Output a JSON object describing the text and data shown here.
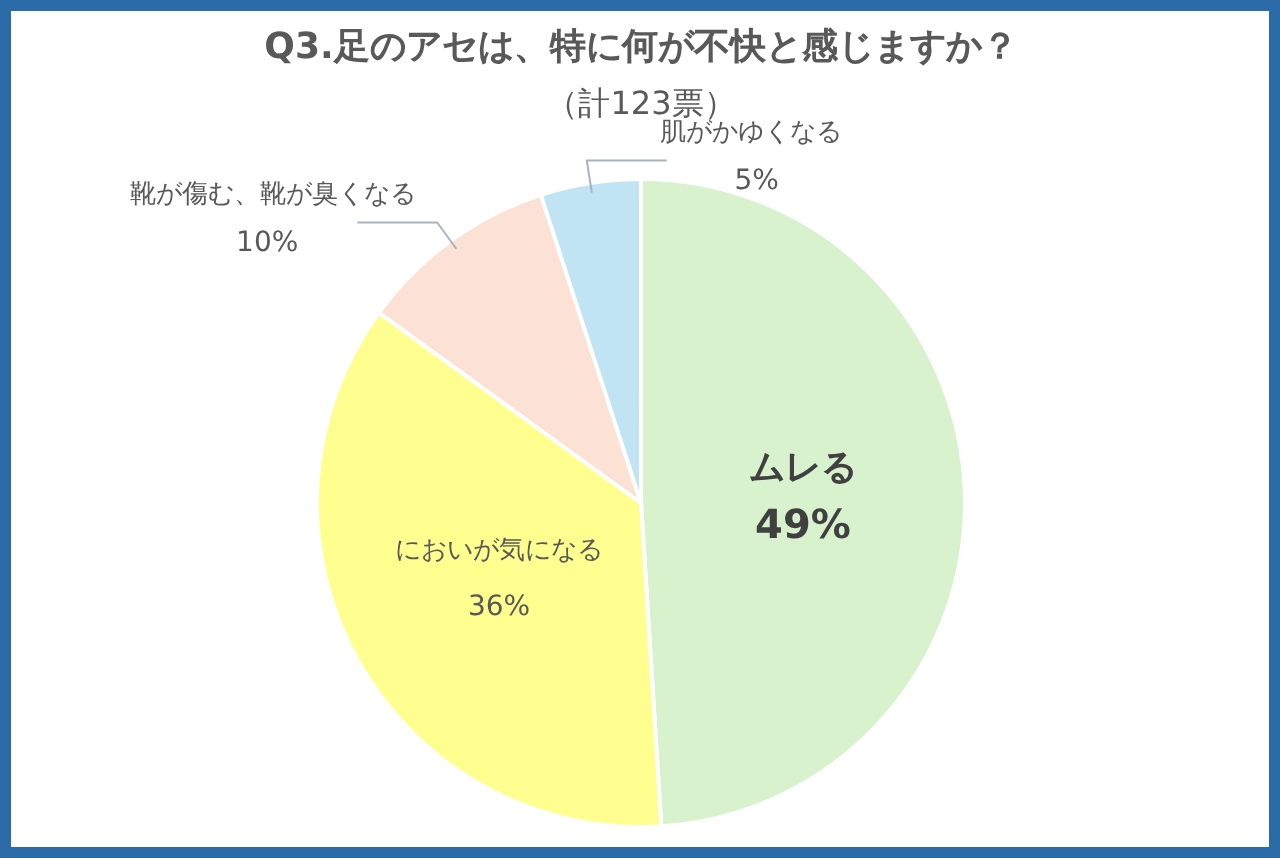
{
  "chart_data": {
    "type": "pie",
    "title": "Q3.足のアセは、特に何が不快と感じますか？",
    "subtitle": "（計123票）",
    "categories": [
      "ムレる",
      "においが気になる",
      "靴が傷む、靴が臭くなる",
      "肌がかゆくなる"
    ],
    "values": [
      49,
      36,
      10,
      5
    ],
    "colors": [
      "#d8f2ce",
      "#ffff90",
      "#fbe2d5",
      "#c0e4f4"
    ],
    "value_labels": [
      "49%",
      "36%",
      "10%",
      "5%"
    ]
  }
}
